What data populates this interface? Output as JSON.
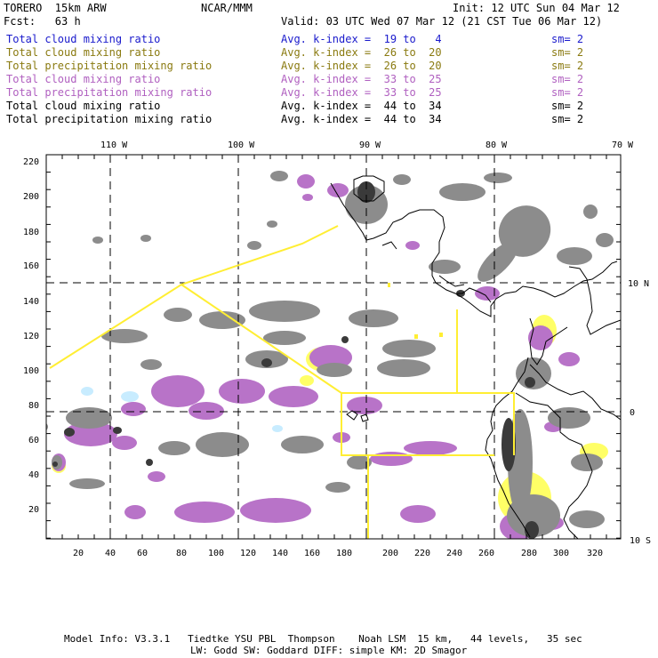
{
  "header": {
    "model": "TORERO  15km ARW",
    "org": "NCAR/MMM",
    "init": "Init: 12 UTC Sun 04 Mar 12",
    "fcst": "Fcst:   63 h",
    "valid": "Valid: 03 UTC Wed 07 Mar 12 (21 CST Tue 06 Mar 12)"
  },
  "legend": [
    {
      "field": "Total cloud mixing ratio",
      "kindex": "Avg. k-index =  19 to   4",
      "sm": "sm= 2",
      "color": "#1a1acc"
    },
    {
      "field": "Total cloud mixing ratio",
      "kindex": "Avg. k-index =  26 to  20",
      "sm": "sm= 2",
      "color": "#8a7a10"
    },
    {
      "field": "Total precipitation mixing ratio",
      "kindex": "Avg. k-index =  26 to  20",
      "sm": "sm= 2",
      "color": "#8a7a10"
    },
    {
      "field": "Total cloud mixing ratio",
      "kindex": "Avg. k-index =  33 to  25",
      "sm": "sm= 2",
      "color": "#b060c0"
    },
    {
      "field": "Total precipitation mixing ratio",
      "kindex": "Avg. k-index =  33 to  25",
      "sm": "sm= 2",
      "color": "#b060c0"
    },
    {
      "field": "Total cloud mixing ratio",
      "kindex": "Avg. k-index =  44 to  34",
      "sm": "sm= 2",
      "color": "#000000"
    },
    {
      "field": "Total precipitation mixing ratio",
      "kindex": "Avg. k-index =  44 to  34",
      "sm": "sm= 2",
      "color": "#000000"
    }
  ],
  "map": {
    "top_lon_labels": [
      "110 W",
      "100 W",
      "90 W",
      "80 W",
      "70 W"
    ],
    "right_lat_labels": [
      "10 N",
      "0",
      "10 S"
    ],
    "x_ticks": [
      "20",
      "40",
      "60",
      "80",
      "100",
      "120",
      "140",
      "160",
      "180",
      "200",
      "220",
      "240",
      "260",
      "280",
      "300",
      "320"
    ],
    "y_ticks": [
      "220",
      "200",
      "180",
      "160",
      "140",
      "120",
      "100",
      "80",
      "60",
      "40",
      "20"
    ],
    "colors": {
      "gray": "#8c8c8c",
      "dark": "#3a3a3a",
      "magenta": "#b873c8",
      "yellow": "#ffff66",
      "cyan": "#c8ecff",
      "route": "#ffee33"
    }
  },
  "footer": {
    "line1": "Model Info: V3.3.1   Tiedtke YSU PBL  Thompson    Noah LSM  15 km,   44 levels,   35 sec",
    "line2": "LW: Godd SW: Goddard DIFF: simple KM: 2D Smagor"
  }
}
